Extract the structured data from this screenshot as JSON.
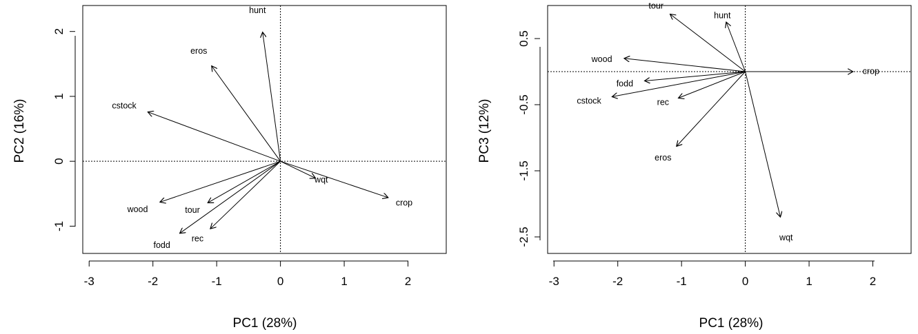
{
  "chart_data": [
    {
      "type": "biplot",
      "xlabel": "PC1 (28%)",
      "ylabel": "PC2 (16%)",
      "xlim": [
        -3.1,
        2.6
      ],
      "ylim": [
        -1.42,
        2.4
      ],
      "xticks": [
        {
          "value": -3,
          "label": "-3"
        },
        {
          "value": -2,
          "label": "-2"
        },
        {
          "value": -1,
          "label": "-1"
        },
        {
          "value": 0,
          "label": "0"
        },
        {
          "value": 1,
          "label": "1"
        },
        {
          "value": 2,
          "label": "2"
        }
      ],
      "yticks": [
        {
          "value": -1,
          "label": "-1"
        },
        {
          "value": 0,
          "label": "0"
        },
        {
          "value": 1,
          "label": "1"
        },
        {
          "value": 2,
          "label": "2"
        }
      ],
      "reference_lines": {
        "x": 0,
        "y": 0,
        "style": "dotted"
      },
      "vectors": [
        {
          "name": "hunt",
          "x": -0.28,
          "y": 1.99,
          "label_x": -0.36,
          "label_y": 2.32
        },
        {
          "name": "eros",
          "x": -1.08,
          "y": 1.47,
          "label_x": -1.28,
          "label_y": 1.69
        },
        {
          "name": "cstock",
          "x": -2.08,
          "y": 0.76,
          "label_x": -2.45,
          "label_y": 0.85
        },
        {
          "name": "wqt",
          "x": 0.55,
          "y": -0.26,
          "label_x": 0.64,
          "label_y": -0.29
        },
        {
          "name": "crop",
          "x": 1.69,
          "y": -0.56,
          "label_x": 1.94,
          "label_y": -0.65
        },
        {
          "name": "wood",
          "x": -1.89,
          "y": -0.63,
          "label_x": -2.24,
          "label_y": -0.75
        },
        {
          "name": "tour",
          "x": -1.14,
          "y": -0.64,
          "label_x": -1.38,
          "label_y": -0.76
        },
        {
          "name": "fodd",
          "x": -1.58,
          "y": -1.11,
          "label_x": -1.86,
          "label_y": -1.3
        },
        {
          "name": "rec",
          "x": -1.1,
          "y": -1.04,
          "label_x": -1.3,
          "label_y": -1.2
        }
      ]
    },
    {
      "type": "biplot",
      "xlabel": "PC1 (28%)",
      "ylabel": "PC3 (12%)",
      "xlim": [
        -3.1,
        2.6
      ],
      "ylim": [
        -2.75,
        1.0
      ],
      "xticks": [
        {
          "value": -3,
          "label": "-3"
        },
        {
          "value": -2,
          "label": "-2"
        },
        {
          "value": -1,
          "label": "-1"
        },
        {
          "value": 0,
          "label": "0"
        },
        {
          "value": 1,
          "label": "1"
        },
        {
          "value": 2,
          "label": "2"
        }
      ],
      "yticks": [
        {
          "value": -2.5,
          "label": "-2.5"
        },
        {
          "value": -1.5,
          "label": "-1.5"
        },
        {
          "value": -0.5,
          "label": "-0.5"
        },
        {
          "value": 0.5,
          "label": "0.5"
        }
      ],
      "reference_lines": {
        "x": 0,
        "y": 0,
        "style": "dotted"
      },
      "vectors": [
        {
          "name": "tour",
          "x": -1.18,
          "y": 0.87,
          "label_x": -1.4,
          "label_y": 0.99
        },
        {
          "name": "hunt",
          "x": -0.3,
          "y": 0.75,
          "label_x": -0.36,
          "label_y": 0.84
        },
        {
          "name": "wood",
          "x": -1.9,
          "y": 0.2,
          "label_x": -2.25,
          "label_y": 0.18
        },
        {
          "name": "crop",
          "x": 1.69,
          "y": 0.0,
          "label_x": 1.97,
          "label_y": 0.0
        },
        {
          "name": "fodd",
          "x": -1.58,
          "y": -0.14,
          "label_x": -1.89,
          "label_y": -0.19
        },
        {
          "name": "cstock",
          "x": -2.09,
          "y": -0.38,
          "label_x": -2.45,
          "label_y": -0.45
        },
        {
          "name": "rec",
          "x": -1.05,
          "y": -0.4,
          "label_x": -1.29,
          "label_y": -0.47
        },
        {
          "name": "eros",
          "x": -1.08,
          "y": -1.13,
          "label_x": -1.29,
          "label_y": -1.31
        },
        {
          "name": "wqt",
          "x": 0.55,
          "y": -2.2,
          "label_x": 0.64,
          "label_y": -2.52
        }
      ]
    }
  ]
}
